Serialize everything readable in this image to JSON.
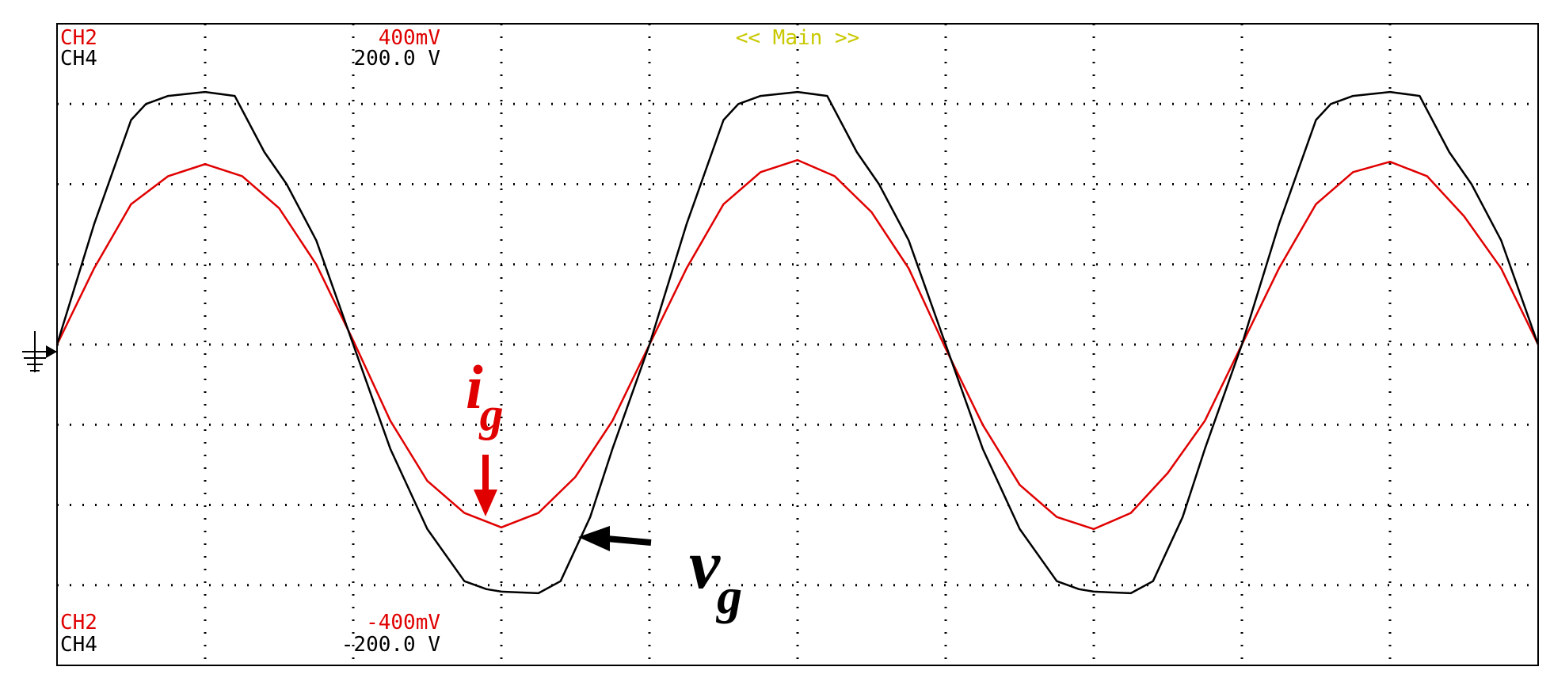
{
  "header": {
    "ch2_label": "CH2",
    "ch2_top": "400mV",
    "ch4_label": "CH4",
    "ch4_top": "200.0 V",
    "mode": "<< Main >>"
  },
  "footer": {
    "ch2_label": "CH2",
    "ch2_bottom": "-400mV",
    "ch4_label": "CH4",
    "ch4_bottom": "-200.0 V"
  },
  "annotations": {
    "ig_main": "i",
    "ig_sub": "g",
    "vg_main": "v",
    "vg_sub": "g"
  },
  "colors": {
    "ch2": "#e00000",
    "ch4": "#000000",
    "mode": "#c8c800",
    "grid": "#000000",
    "frame": "#000000"
  },
  "chart_data": {
    "type": "line",
    "x_divisions": 10,
    "y_divisions": 8,
    "grid": true,
    "ylim": [
      -4,
      4
    ],
    "xlim": [
      0,
      10
    ],
    "series": [
      {
        "name": "i_g",
        "channel": "CH2",
        "color": "#e00000",
        "x": [
          0,
          0.25,
          0.5,
          0.75,
          1.0,
          1.25,
          1.5,
          1.75,
          2.0,
          2.25,
          2.5,
          2.75,
          3.0,
          3.25,
          3.5,
          3.75,
          4.0,
          4.25,
          4.5,
          4.75,
          5.0,
          5.25,
          5.5,
          5.75,
          6.0,
          6.25,
          6.5,
          6.75,
          7.0,
          7.25,
          7.5,
          7.75,
          8.0,
          8.25,
          8.5,
          8.75,
          9.0,
          9.25,
          9.5,
          9.75,
          10.0
        ],
        "y": [
          0,
          0.95,
          1.75,
          2.1,
          2.25,
          2.1,
          1.7,
          1.0,
          0.05,
          -0.95,
          -1.7,
          -2.1,
          -2.28,
          -2.1,
          -1.65,
          -0.95,
          0,
          0.95,
          1.75,
          2.15,
          2.3,
          2.1,
          1.65,
          0.95,
          -0.05,
          -1.0,
          -1.75,
          -2.15,
          -2.3,
          -2.1,
          -1.6,
          -0.95,
          0,
          0.95,
          1.75,
          2.15,
          2.28,
          2.1,
          1.6,
          0.95,
          0
        ]
      },
      {
        "name": "v_g",
        "channel": "CH4",
        "color": "#000000",
        "x": [
          0,
          0.25,
          0.5,
          0.6,
          0.75,
          1.0,
          1.2,
          1.4,
          1.55,
          1.75,
          2.0,
          2.25,
          2.5,
          2.75,
          2.9,
          3.0,
          3.25,
          3.4,
          3.6,
          3.75,
          4.0,
          4.25,
          4.5,
          4.6,
          4.75,
          5.0,
          5.2,
          5.4,
          5.55,
          5.75,
          6.0,
          6.25,
          6.5,
          6.75,
          6.9,
          7.0,
          7.25,
          7.4,
          7.6,
          7.75,
          8.0,
          8.25,
          8.5,
          8.6,
          8.75,
          9.0,
          9.2,
          9.4,
          9.55,
          9.75,
          10.0
        ],
        "y": [
          0,
          1.5,
          2.8,
          3.0,
          3.1,
          3.15,
          3.1,
          2.4,
          2.0,
          1.3,
          0,
          -1.3,
          -2.3,
          -2.95,
          -3.05,
          -3.08,
          -3.1,
          -2.95,
          -2.15,
          -1.3,
          0,
          1.5,
          2.8,
          3.0,
          3.1,
          3.15,
          3.1,
          2.4,
          2.0,
          1.3,
          0,
          -1.3,
          -2.3,
          -2.95,
          -3.05,
          -3.08,
          -3.1,
          -2.95,
          -2.15,
          -1.3,
          0,
          1.5,
          2.8,
          3.0,
          3.1,
          3.15,
          3.1,
          2.4,
          2.0,
          1.3,
          0
        ]
      }
    ]
  }
}
